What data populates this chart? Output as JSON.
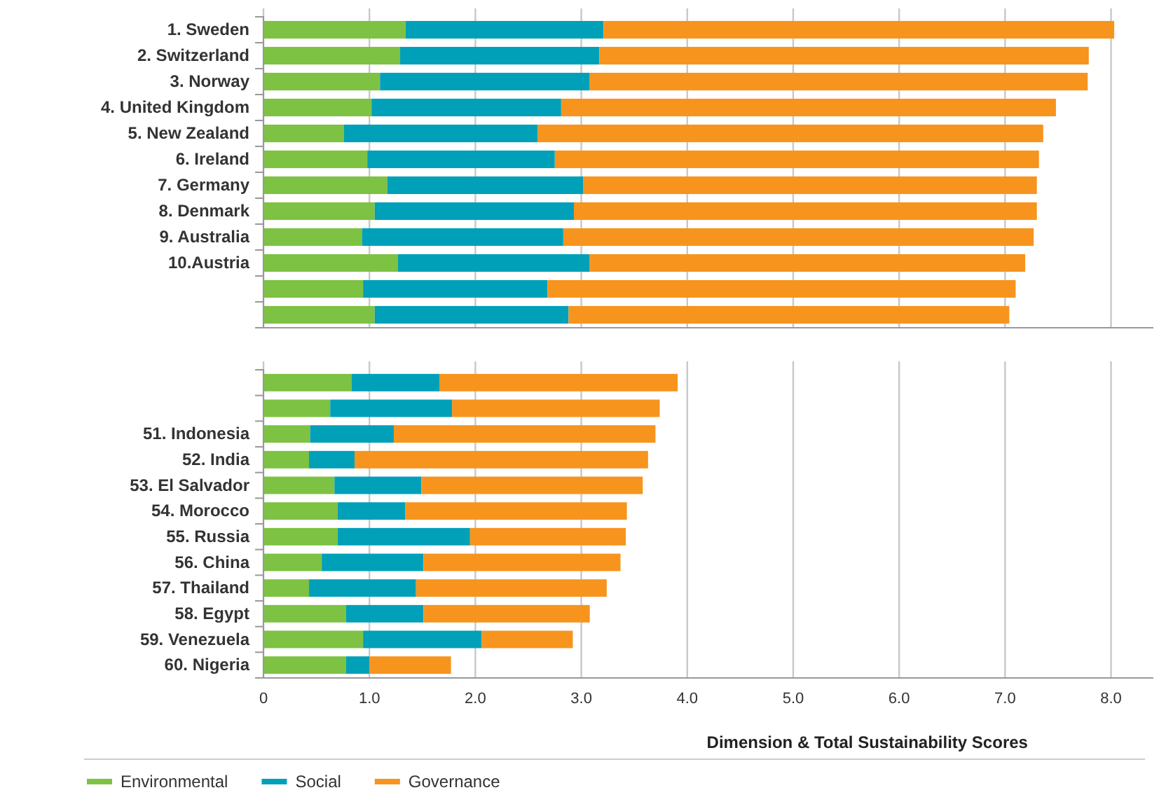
{
  "chart_data": [
    {
      "type": "bar",
      "orientation": "horizontal",
      "stacked": true,
      "categories": [
        "1. Sweden",
        "2. Switzerland",
        "3. Norway",
        "4. United Kingdom",
        "5. New Zealand",
        "6. Ireland",
        "7. Germany",
        "8. Denmark",
        "9. Australia",
        "10.Austria",
        null,
        null
      ],
      "series": [
        {
          "color": "#7dc242",
          "values": [
            1.34,
            1.29,
            1.1,
            1.02,
            0.76,
            0.98,
            1.17,
            1.05,
            0.93,
            1.27,
            0.94,
            1.05
          ]
        },
        {
          "color": "#00a0b8",
          "values": [
            1.87,
            1.88,
            1.98,
            1.79,
            1.83,
            1.77,
            1.85,
            1.88,
            1.9,
            1.81,
            1.74,
            1.83
          ]
        },
        {
          "color": "#f7941d",
          "values": [
            4.82,
            4.62,
            4.7,
            4.67,
            4.77,
            4.57,
            4.28,
            4.37,
            4.44,
            4.11,
            4.42,
            4.16
          ]
        }
      ],
      "xlim": [
        0,
        8.4
      ],
      "xticks": [
        {
          "value": 0,
          "label": null
        },
        {
          "value": 1,
          "label": null
        },
        {
          "value": 2,
          "label": null
        },
        {
          "value": 3,
          "label": null
        },
        {
          "value": 4,
          "label": null
        },
        {
          "value": 5,
          "label": null
        },
        {
          "value": 6,
          "label": null
        },
        {
          "value": 7,
          "label": null
        },
        {
          "value": 8,
          "label": null
        }
      ],
      "grid": "x",
      "tick_labels": "y"
    },
    {
      "type": "bar",
      "orientation": "horizontal",
      "stacked": true,
      "categories": [
        null,
        null,
        "51. Indonesia",
        "52. India",
        "53. El Salvador",
        "54. Morocco",
        "55. Russia",
        "56. China",
        "57. Thailand",
        "58. Egypt",
        "59. Venezuela",
        "60. Nigeria"
      ],
      "series": [
        {
          "name": "Environmental",
          "color": "#7dc242",
          "values": [
            0.83,
            0.63,
            0.44,
            0.43,
            0.67,
            0.7,
            0.7,
            0.55,
            0.43,
            0.78,
            0.94,
            0.78
          ]
        },
        {
          "name": "Social",
          "color": "#00a0b8",
          "values": [
            0.83,
            1.15,
            0.79,
            0.43,
            0.82,
            0.64,
            1.25,
            0.96,
            1.01,
            0.73,
            1.12,
            0.22
          ]
        },
        {
          "name": "Governance",
          "color": "#f7941d",
          "values": [
            2.25,
            1.96,
            2.47,
            2.77,
            2.09,
            2.09,
            1.47,
            1.86,
            1.8,
            1.57,
            0.86,
            0.77
          ]
        }
      ],
      "xlim": [
        0,
        8.4
      ],
      "xticks": [
        0,
        {
          "value": 1,
          "label": "1.0"
        },
        {
          "value": 2,
          "label": "2.0"
        },
        {
          "value": 3,
          "label": "3.0"
        },
        {
          "value": 4,
          "label": "4.0"
        },
        {
          "value": 5,
          "label": "5.0"
        },
        {
          "value": 6,
          "label": "6.0"
        },
        {
          "value": 7,
          "label": "7.0"
        },
        {
          "value": 8,
          "label": "8.0"
        }
      ],
      "grid": "x",
      "xlabel": "Dimension & Total Sustainability Scores",
      "legend": "bottom"
    }
  ]
}
